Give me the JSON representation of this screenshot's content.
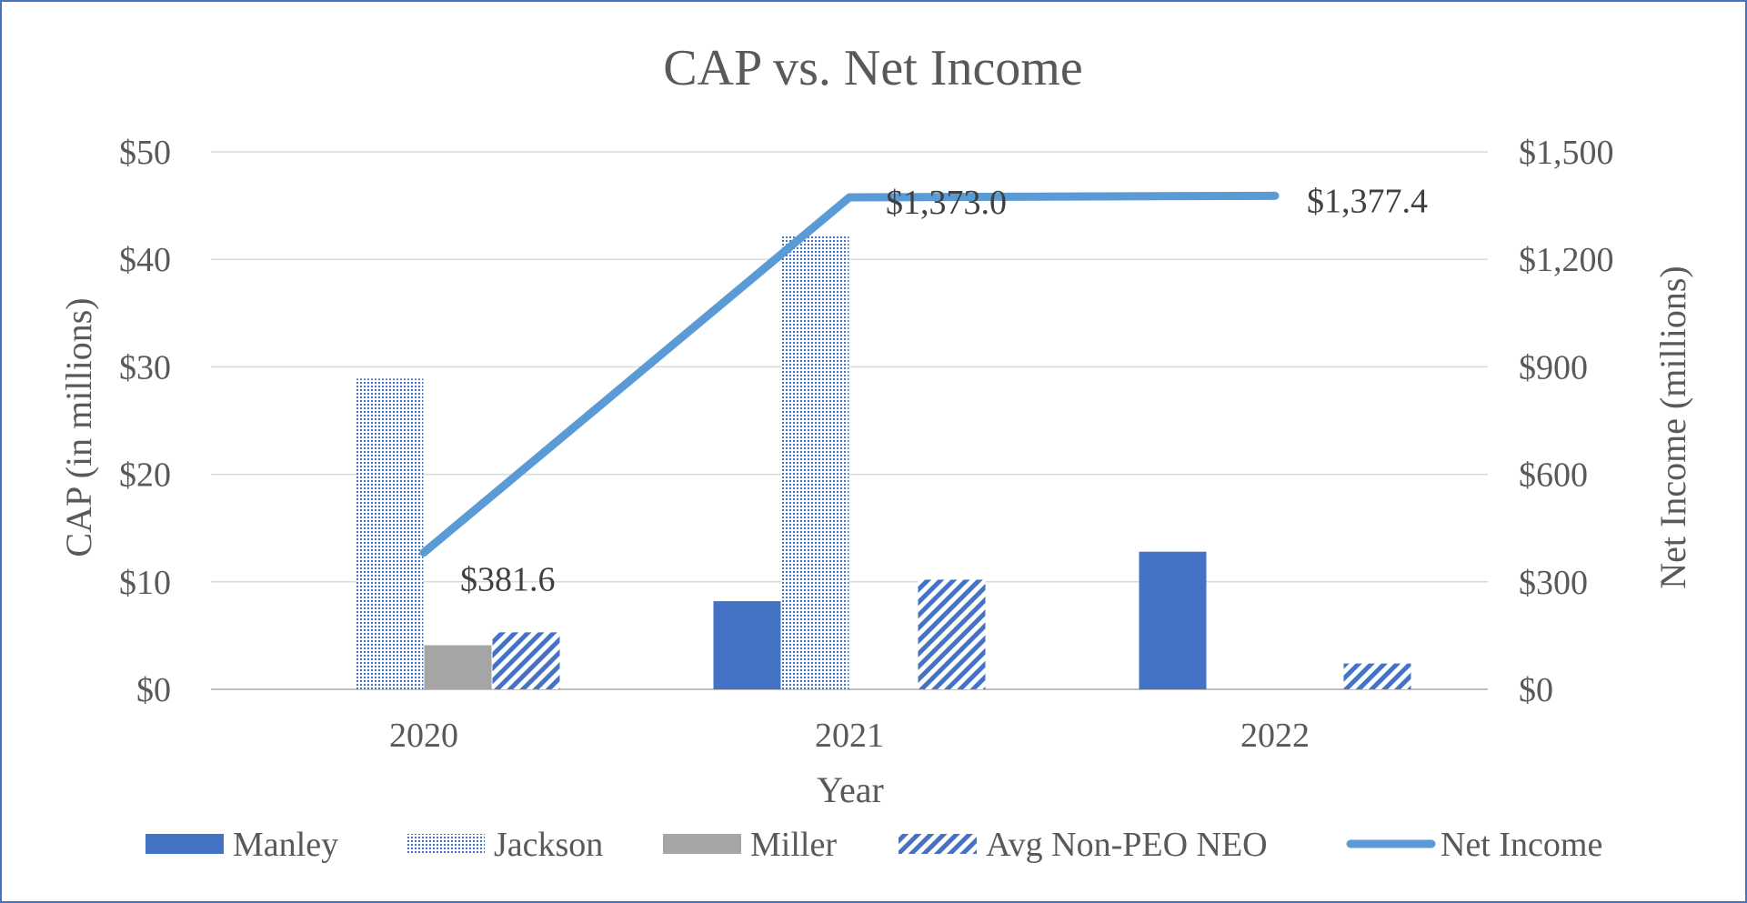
{
  "chart_data": {
    "type": "bar",
    "title": "CAP vs. Net Income",
    "xlabel": "Year",
    "ylabel": "CAP (in millions)",
    "y2label": "Net Income (millions)",
    "categories": [
      "2020",
      "2021",
      "2022"
    ],
    "ylim": [
      0,
      50
    ],
    "y2lim": [
      0,
      1500
    ],
    "yticks": [
      "$0",
      "$10",
      "$20",
      "$30",
      "$40",
      "$50"
    ],
    "y2ticks": [
      "$0",
      "$300",
      "$600",
      "$900",
      "$1,200",
      "$1,500"
    ],
    "grid": true,
    "legend_position": "bottom",
    "series": [
      {
        "name": "Manley",
        "kind": "bar",
        "pattern": "solid",
        "color": "#4472C4",
        "values": [
          null,
          8.2,
          12.8
        ]
      },
      {
        "name": "Jackson",
        "kind": "bar",
        "pattern": "dots",
        "color": "#4472C4",
        "values": [
          28.9,
          42.3,
          null
        ]
      },
      {
        "name": "Miller",
        "kind": "bar",
        "pattern": "solid",
        "color": "#A5A5A5",
        "values": [
          4.1,
          null,
          null
        ]
      },
      {
        "name": "Avg Non-PEO NEO",
        "kind": "bar",
        "pattern": "diagonal",
        "color": "#4472C4",
        "values": [
          5.3,
          10.2,
          2.4
        ]
      },
      {
        "name": "Net Income",
        "kind": "line",
        "axis": "right",
        "color": "#5B9BD5",
        "values": [
          381.6,
          1373.0,
          1377.4
        ],
        "labels": [
          "$381.6",
          "$1,373.0",
          "$1,377.4"
        ]
      }
    ]
  }
}
